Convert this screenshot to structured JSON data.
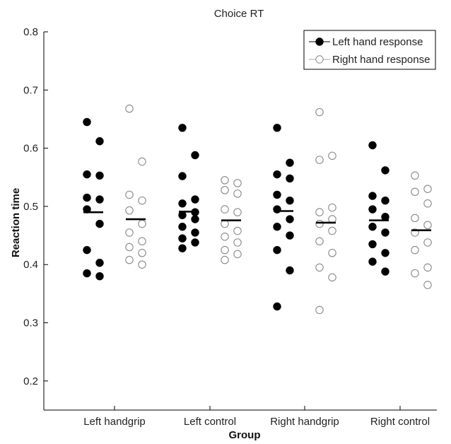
{
  "chart_data": {
    "type": "scatter",
    "title": "Choice RT",
    "xlabel": "Group",
    "ylabel": "Reaction time",
    "ylim": [
      0.15,
      0.8
    ],
    "yticks": [
      "0.2",
      "0.3",
      "0.4",
      "0.5",
      "0.6",
      "0.7",
      "0.8"
    ],
    "grid": false,
    "legend_position": "top-right",
    "categories": [
      "Left handgrip",
      "Left control",
      "Right handgrip",
      "Right control"
    ],
    "series": [
      {
        "name": "Left hand response",
        "marker": "filled-circle",
        "color": "#000000",
        "values": [
          [
            0.645,
            0.612,
            0.555,
            0.553,
            0.515,
            0.512,
            0.495,
            0.47,
            0.425,
            0.403,
            0.385,
            0.38
          ],
          [
            0.635,
            0.588,
            0.552,
            0.512,
            0.505,
            0.49,
            0.485,
            0.478,
            0.465,
            0.455,
            0.445,
            0.438,
            0.428
          ],
          [
            0.635,
            0.575,
            0.555,
            0.548,
            0.52,
            0.51,
            0.495,
            0.478,
            0.465,
            0.45,
            0.425,
            0.39,
            0.328
          ],
          [
            0.605,
            0.562,
            0.518,
            0.51,
            0.495,
            0.482,
            0.465,
            0.455,
            0.435,
            0.42,
            0.405,
            0.388
          ]
        ],
        "means": [
          0.49,
          0.491,
          0.492,
          0.476
        ]
      },
      {
        "name": "Right hand response",
        "marker": "open-circle",
        "color": "#888888",
        "values": [
          [
            0.668,
            0.577,
            0.52,
            0.51,
            0.493,
            0.47,
            0.455,
            0.44,
            0.43,
            0.42,
            0.408,
            0.4
          ],
          [
            0.545,
            0.54,
            0.528,
            0.522,
            0.495,
            0.49,
            0.47,
            0.458,
            0.448,
            0.438,
            0.425,
            0.418,
            0.408
          ],
          [
            0.662,
            0.587,
            0.58,
            0.498,
            0.49,
            0.478,
            0.47,
            0.458,
            0.44,
            0.42,
            0.395,
            0.378,
            0.322
          ],
          [
            0.553,
            0.53,
            0.525,
            0.505,
            0.48,
            0.468,
            0.455,
            0.438,
            0.425,
            0.395,
            0.385,
            0.365
          ]
        ],
        "means": [
          0.478,
          0.476,
          0.472,
          0.459
        ]
      }
    ]
  }
}
